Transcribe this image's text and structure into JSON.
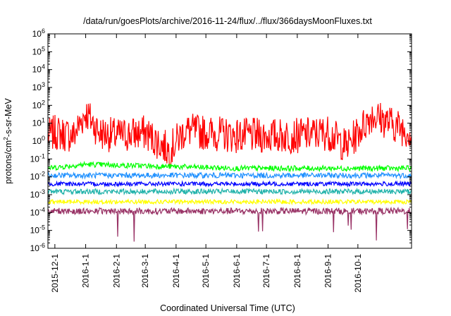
{
  "chart_data": {
    "type": "line",
    "title": "/data/run/goesPlots/archive/2016-11-24/flux/../flux/366daysMoonFluxes.txt",
    "xlabel": "Coordinated Universal Time (UTC)",
    "ylabel": "protons/cm²-s-sr-MeV",
    "ylabel_parts": {
      "pre": "protons/cm",
      "sup": "2",
      "post": "-s-sr-MeV"
    },
    "yscale": "log",
    "ylim": [
      1e-06,
      1000000.0
    ],
    "xlim": [
      "2015-11-24",
      "2016-11-24"
    ],
    "grid": false,
    "legend": "none",
    "x_tick_labels": [
      "2015-12-1",
      "2016-1-1",
      "2016-2-1",
      "2016-3-1",
      "2016-4-1",
      "2016-5-1",
      "2016-6-1",
      "2016-7-1",
      "2016-8-1",
      "2016-9-1",
      "2016-10-1"
    ],
    "y_tick_exponents": [
      -6,
      -5,
      -4,
      -3,
      -2,
      -1,
      0,
      1,
      2,
      3,
      4,
      5,
      6
    ],
    "series": [
      {
        "color": "#ff0000",
        "base": 1.5,
        "noise": 1.0,
        "values": [
          {
            "x": "2015-11-24",
            "y": 2
          },
          {
            "x": "2015-12-1",
            "y": 3
          },
          {
            "x": "2015-12-20",
            "y": 2
          },
          {
            "x": "2016-1-1",
            "y": 40
          },
          {
            "x": "2016-1-15",
            "y": 3
          },
          {
            "x": "2016-2-1",
            "y": 2
          },
          {
            "x": "2016-3-1",
            "y": 3
          },
          {
            "x": "2016-3-25",
            "y": 0.3
          },
          {
            "x": "2016-4-10",
            "y": 4
          },
          {
            "x": "2016-5-1",
            "y": 3
          },
          {
            "x": "2016-6-1",
            "y": 2
          },
          {
            "x": "2016-7-1",
            "y": 2
          },
          {
            "x": "2016-8-1",
            "y": 2
          },
          {
            "x": "2016-9-1",
            "y": 3
          },
          {
            "x": "2016-9-20",
            "y": 0.5
          },
          {
            "x": "2016-10-15",
            "y": 30
          },
          {
            "x": "2016-11-24",
            "y": 3
          }
        ]
      },
      {
        "color": "#00ff00",
        "base": -1.5,
        "noise": 0.15,
        "values": [
          {
            "x": "2015-11-24",
            "y": 0.03
          },
          {
            "x": "2016-1-1",
            "y": 0.05
          },
          {
            "x": "2016-6-1",
            "y": 0.03
          },
          {
            "x": "2016-11-24",
            "y": 0.03
          }
        ]
      },
      {
        "color": "#1e90ff",
        "base": -1.9,
        "noise": 0.15,
        "values": [
          {
            "x": "2015-11-24",
            "y": 0.012
          },
          {
            "x": "2016-6-1",
            "y": 0.012
          },
          {
            "x": "2016-11-24",
            "y": 0.012
          }
        ]
      },
      {
        "color": "#20b2aa",
        "base": -2.8,
        "noise": 0.15,
        "values": [
          {
            "x": "2015-11-24",
            "y": 0.0015
          },
          {
            "x": "2016-6-1",
            "y": 0.0015
          },
          {
            "x": "2016-11-24",
            "y": 0.0015
          }
        ]
      },
      {
        "color": "#0000ff",
        "base": -2.4,
        "noise": 0.12,
        "values": [
          {
            "x": "2015-11-24",
            "y": 0.004
          },
          {
            "x": "2016-6-1",
            "y": 0.004
          },
          {
            "x": "2016-11-24",
            "y": 0.004
          }
        ]
      },
      {
        "color": "#ffff00",
        "base": -3.4,
        "noise": 0.12,
        "values": [
          {
            "x": "2015-11-24",
            "y": 0.0004
          },
          {
            "x": "2016-6-1",
            "y": 0.0004
          },
          {
            "x": "2016-11-24",
            "y": 0.0004
          }
        ]
      },
      {
        "color": "#993366",
        "base": -3.9,
        "noise": 0.18,
        "values": [
          {
            "x": "2015-11-24",
            "y": 0.00012
          },
          {
            "x": "2016-6-1",
            "y": 0.00012
          },
          {
            "x": "2016-11-24",
            "y": 0.00012
          }
        ]
      }
    ]
  }
}
